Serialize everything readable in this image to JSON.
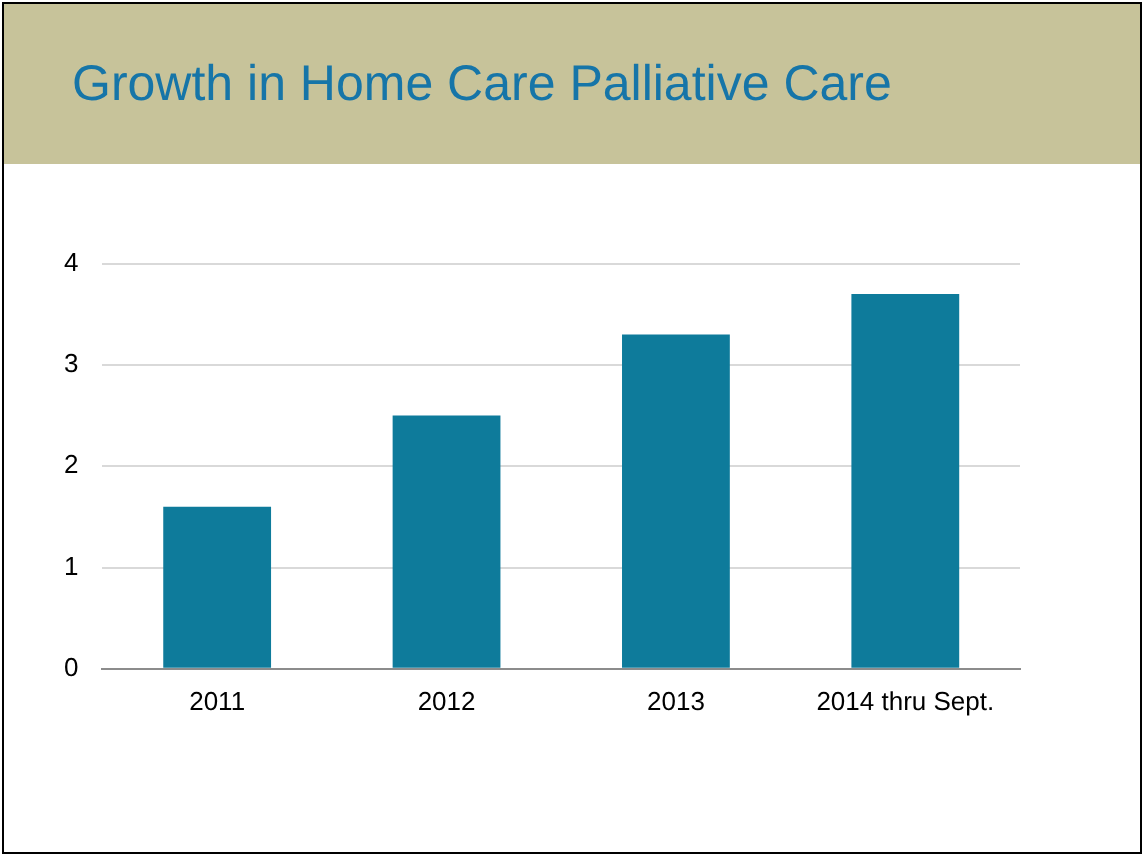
{
  "chart_data": {
    "type": "bar",
    "title": "Growth in Home Care Palliative Care",
    "categories": [
      "2011",
      "2012",
      "2013",
      "2014 thru Sept."
    ],
    "values": [
      1.6,
      2.5,
      3.3,
      3.7
    ],
    "color": "#0e7b9b",
    "ylim": [
      0,
      4
    ],
    "yticks": [
      0,
      1,
      2,
      3,
      4
    ],
    "grid": "y"
  }
}
